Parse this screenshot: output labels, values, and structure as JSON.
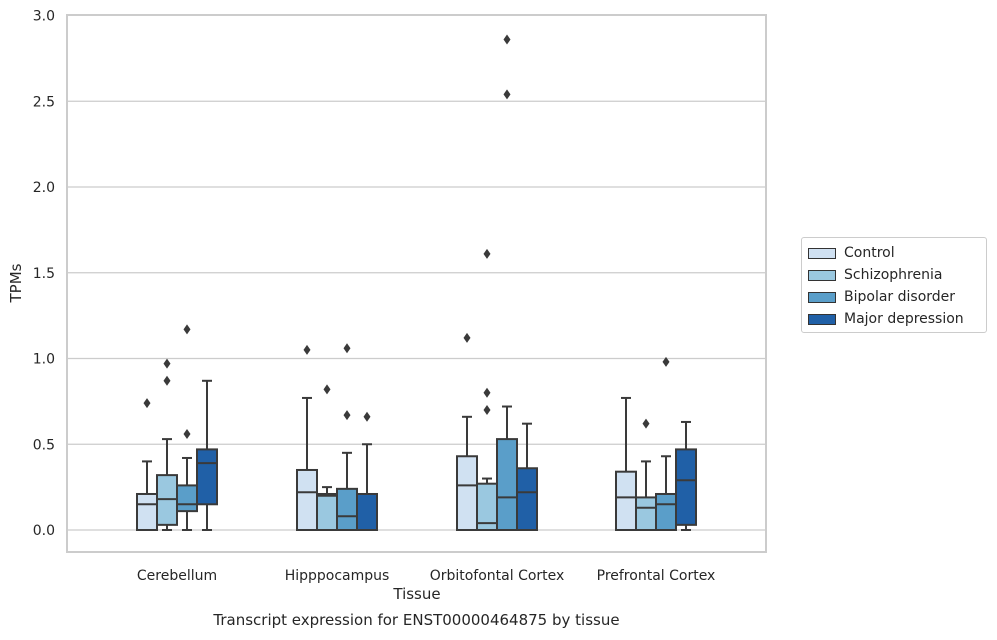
{
  "caption": "Transcript expression for ENST00000464875 by tissue",
  "chart_data": {
    "type": "box",
    "xlabel": "Tissue",
    "ylabel": "TPMs",
    "ylim": [
      -0.13,
      3.0
    ],
    "yticks": [
      "0.0",
      "0.5",
      "1.0",
      "1.5",
      "2.0",
      "2.5",
      "3.0"
    ],
    "grid": true,
    "legend_position": "right",
    "categories": [
      "Cerebellum",
      "Hipppocampus",
      "Orbitofontal Cortex",
      "Prefrontal Cortex"
    ],
    "series": [
      {
        "name": "Control",
        "color": "#d0e1f2",
        "boxes": [
          {
            "whislo": 0.0,
            "q1": 0.0,
            "med": 0.15,
            "q3": 0.21,
            "whishi": 0.4,
            "fliers": [
              0.74
            ]
          },
          {
            "whislo": 0.0,
            "q1": 0.0,
            "med": 0.22,
            "q3": 0.35,
            "whishi": 0.77,
            "fliers": [
              1.05
            ]
          },
          {
            "whislo": 0.0,
            "q1": 0.0,
            "med": 0.26,
            "q3": 0.43,
            "whishi": 0.66,
            "fliers": [
              1.12
            ]
          },
          {
            "whislo": 0.0,
            "q1": 0.0,
            "med": 0.19,
            "q3": 0.34,
            "whishi": 0.77,
            "fliers": []
          }
        ]
      },
      {
        "name": "Schizophrenia",
        "color": "#9ac8e0",
        "boxes": [
          {
            "whislo": 0.0,
            "q1": 0.03,
            "med": 0.18,
            "q3": 0.32,
            "whishi": 0.53,
            "fliers": [
              0.87,
              0.97
            ]
          },
          {
            "whislo": 0.0,
            "q1": 0.0,
            "med": 0.2,
            "q3": 0.21,
            "whishi": 0.25,
            "fliers": [
              0.82
            ]
          },
          {
            "whislo": 0.0,
            "q1": 0.0,
            "med": 0.04,
            "q3": 0.27,
            "whishi": 0.3,
            "fliers": [
              0.7,
              0.8,
              1.61
            ]
          },
          {
            "whislo": 0.0,
            "q1": 0.0,
            "med": 0.13,
            "q3": 0.19,
            "whishi": 0.4,
            "fliers": [
              0.62
            ]
          }
        ]
      },
      {
        "name": "Bipolar disorder",
        "color": "#5a9ec9",
        "boxes": [
          {
            "whislo": 0.0,
            "q1": 0.11,
            "med": 0.15,
            "q3": 0.26,
            "whishi": 0.42,
            "fliers": [
              0.56,
              1.17
            ]
          },
          {
            "whislo": 0.0,
            "q1": 0.0,
            "med": 0.08,
            "q3": 0.24,
            "whishi": 0.45,
            "fliers": [
              0.67,
              1.06
            ]
          },
          {
            "whislo": 0.0,
            "q1": 0.0,
            "med": 0.19,
            "q3": 0.53,
            "whishi": 0.72,
            "fliers": [
              2.54,
              2.86
            ]
          },
          {
            "whislo": 0.0,
            "q1": 0.0,
            "med": 0.15,
            "q3": 0.21,
            "whishi": 0.43,
            "fliers": [
              0.98
            ]
          }
        ]
      },
      {
        "name": "Major depression",
        "color": "#2060a7",
        "boxes": [
          {
            "whislo": 0.0,
            "q1": 0.15,
            "med": 0.39,
            "q3": 0.47,
            "whishi": 0.87,
            "fliers": []
          },
          {
            "whislo": 0.0,
            "q1": 0.0,
            "med": 0.0,
            "q3": 0.21,
            "whishi": 0.5,
            "fliers": [
              0.66
            ]
          },
          {
            "whislo": 0.0,
            "q1": 0.0,
            "med": 0.22,
            "q3": 0.36,
            "whishi": 0.62,
            "fliers": []
          },
          {
            "whislo": 0.0,
            "q1": 0.03,
            "med": 0.29,
            "q3": 0.47,
            "whishi": 0.63,
            "fliers": []
          }
        ]
      }
    ]
  }
}
